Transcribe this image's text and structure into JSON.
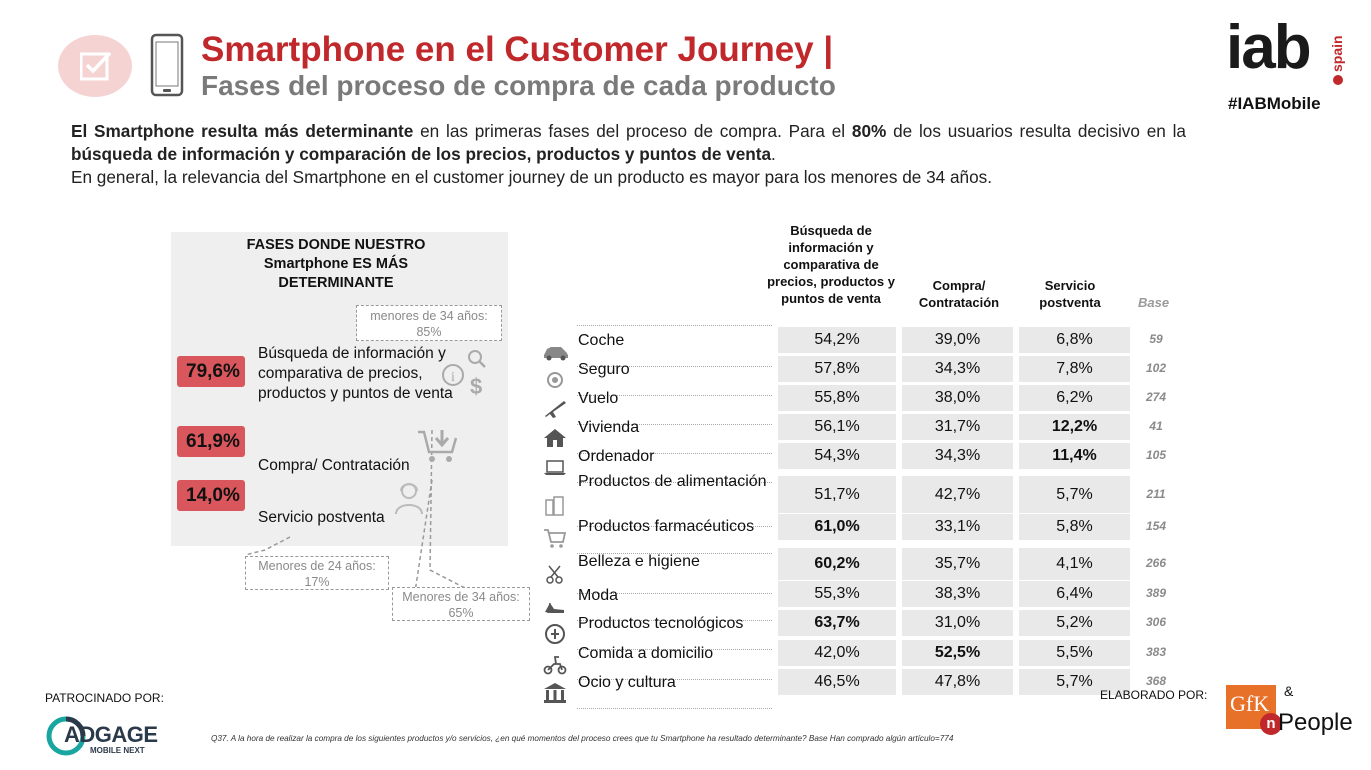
{
  "header": {
    "title": "Smartphone en el Customer Journey |",
    "subtitle": "Fases del proceso de compra de cada producto",
    "logo_text": "iab",
    "logo_sub": "spain",
    "hashtag": "#IABMobile"
  },
  "intro": {
    "p1_a": "El Smartphone resulta más determinante",
    "p1_b": " en las primeras fases del proceso de compra. Para el ",
    "p1_c": "80%",
    "p1_d": " de los usuarios resulta decisivo en la ",
    "p1_e": "búsqueda de información y comparación de los precios, productos y puntos de venta",
    "p1_f": ".",
    "p2": "En general, la relevancia del Smartphone en el customer journey de un producto es mayor para los menores de 34 años."
  },
  "panel": {
    "title": "FASES DONDE NUESTRO Smartphone ES MÁS DETERMINANTE",
    "phases": [
      {
        "pct": "79,6%",
        "label": "Búsqueda de información y comparativa de precios, productos y puntos de venta"
      },
      {
        "pct": "61,9%",
        "label": "Compra/ Contratación"
      },
      {
        "pct": "14,0%",
        "label": "Servicio postventa"
      }
    ],
    "callouts": {
      "top": "menores de 34 años: 85%",
      "left": "Menores de 24 años: 17%",
      "right": "Menores de 34 años: 65%"
    }
  },
  "table": {
    "headers": {
      "c1": "Búsqueda de información y comparativa de precios, productos y puntos de venta",
      "c2": "Compra/ Contratación",
      "c3": "Servicio postventa",
      "base": "Base"
    },
    "rows": [
      {
        "label": "Coche",
        "icon": "car-icon",
        "v1": "54,2%",
        "v2": "39,0%",
        "v3": "6,8%",
        "base": "59"
      },
      {
        "label": "Seguro",
        "icon": "insurance-icon",
        "v1": "57,8%",
        "v2": "34,3%",
        "v3": "7,8%",
        "base": "102"
      },
      {
        "label": "Vuelo",
        "icon": "plane-icon",
        "v1": "55,8%",
        "v2": "38,0%",
        "v3": "6,2%",
        "base": "274"
      },
      {
        "label": "Vivienda",
        "icon": "house-icon",
        "v1": "56,1%",
        "v2": "31,7%",
        "v3": "12,2%",
        "base": "41"
      },
      {
        "label": "Ordenador",
        "icon": "laptop-icon",
        "v1": "54,3%",
        "v2": "34,3%",
        "v3": "11,4%",
        "base": "105"
      },
      {
        "label": "Productos de alimentación",
        "icon": "grocery-icon",
        "v1": "51,7%",
        "v2": "42,7%",
        "v3": "5,7%",
        "base": "211"
      },
      {
        "label": "Productos farmacéuticos",
        "icon": "cart-icon",
        "v1": "61,0%",
        "v2": "33,1%",
        "v3": "5,8%",
        "base": "154"
      },
      {
        "label": "Belleza e higiene",
        "icon": "scissors-icon",
        "v1": "60,2%",
        "v2": "35,7%",
        "v3": "4,1%",
        "base": "266"
      },
      {
        "label": "Moda",
        "icon": "heel-icon",
        "v1": "55,3%",
        "v2": "38,3%",
        "v3": "6,4%",
        "base": "389"
      },
      {
        "label": "Productos tecnológicos",
        "icon": "plug-icon",
        "v1": "63,7%",
        "v2": "31,0%",
        "v3": "5,2%",
        "base": "306"
      },
      {
        "label": "Comida a domicilio",
        "icon": "scooter-icon",
        "v1": "42,0%",
        "v2": "52,5%",
        "v3": "5,5%",
        "base": "383"
      },
      {
        "label": "Ocio y cultura",
        "icon": "museum-icon",
        "v1": "46,5%",
        "v2": "47,8%",
        "v3": "5,7%",
        "base": "368"
      }
    ]
  },
  "footer": {
    "sponsor": "PATROCINADO POR:",
    "adgage": "ADGAGE",
    "adgage_sub": "MOBILE NEXT",
    "note": "Q37. A la hora de realizar la compra de los siguientes productos y/o servicios, ¿en qué momentos del proceso crees que tu Smartphone ha resultado determinante? Base Han comprado algún artículo=774",
    "elaborado": "ELABORADO POR:",
    "gfk": "GfK",
    "people": "People"
  }
}
